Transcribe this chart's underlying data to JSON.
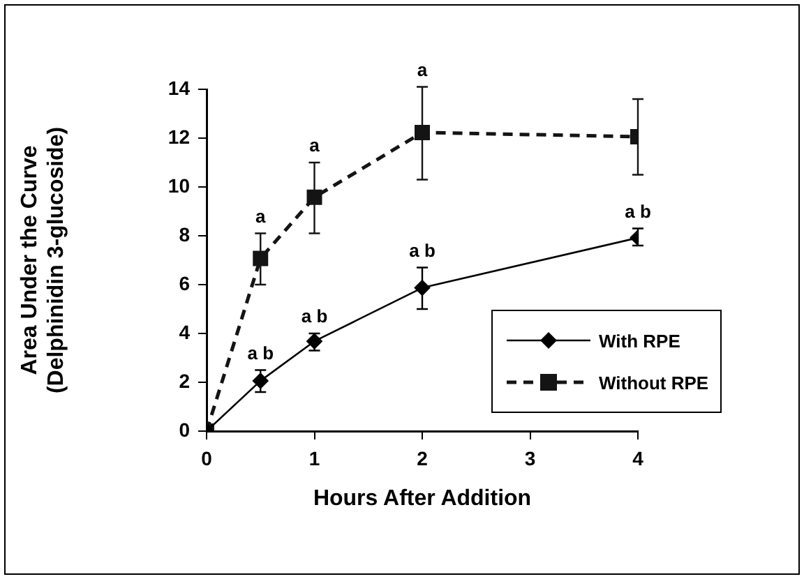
{
  "chart_data": {
    "type": "line",
    "xlabel": "Hours After Addition",
    "ylabel": "Area Under the Curve\n(Delphinidin 3-glucoside)",
    "x": [
      0,
      0.5,
      1,
      2,
      4
    ],
    "xlim": [
      0,
      4
    ],
    "xticks": [
      0,
      1,
      2,
      3,
      4
    ],
    "ylim": [
      0,
      14
    ],
    "yticks": [
      0,
      2,
      4,
      6,
      8,
      10,
      12,
      14
    ],
    "grid": false,
    "legend": "bottom right",
    "series": [
      {
        "name": "With RPE",
        "color": "#000000",
        "marker": "diamond",
        "line_style": "solid",
        "values": [
          0,
          2.06,
          3.68,
          5.87,
          7.92
        ],
        "errors": [
          null,
          [
            1.6,
            2.5
          ],
          [
            3.3,
            4.0
          ],
          [
            5.0,
            6.7
          ],
          [
            7.6,
            8.3
          ]
        ]
      },
      {
        "name": "Without RPE",
        "color": "#141414",
        "marker": "square",
        "line_style": "dashed",
        "values": [
          0,
          7.07,
          9.58,
          12.23,
          12.06
        ],
        "errors": [
          null,
          [
            6.0,
            8.1
          ],
          [
            8.1,
            11.0
          ],
          [
            10.3,
            14.1
          ],
          [
            10.5,
            13.6
          ]
        ]
      }
    ],
    "annotations": [
      {
        "text": "a b",
        "x": 0.5,
        "y": 2.5
      },
      {
        "text": "a b",
        "x": 1,
        "y": 4.0
      },
      {
        "text": "a b",
        "x": 2,
        "y": 6.7
      },
      {
        "text": "a b",
        "x": 4,
        "y": 8.3
      },
      {
        "text": "a",
        "x": 0.5,
        "y": 8.1
      },
      {
        "text": "a",
        "x": 1,
        "y": 11.0
      },
      {
        "text": "a",
        "x": 2,
        "y": 14.1
      }
    ]
  }
}
